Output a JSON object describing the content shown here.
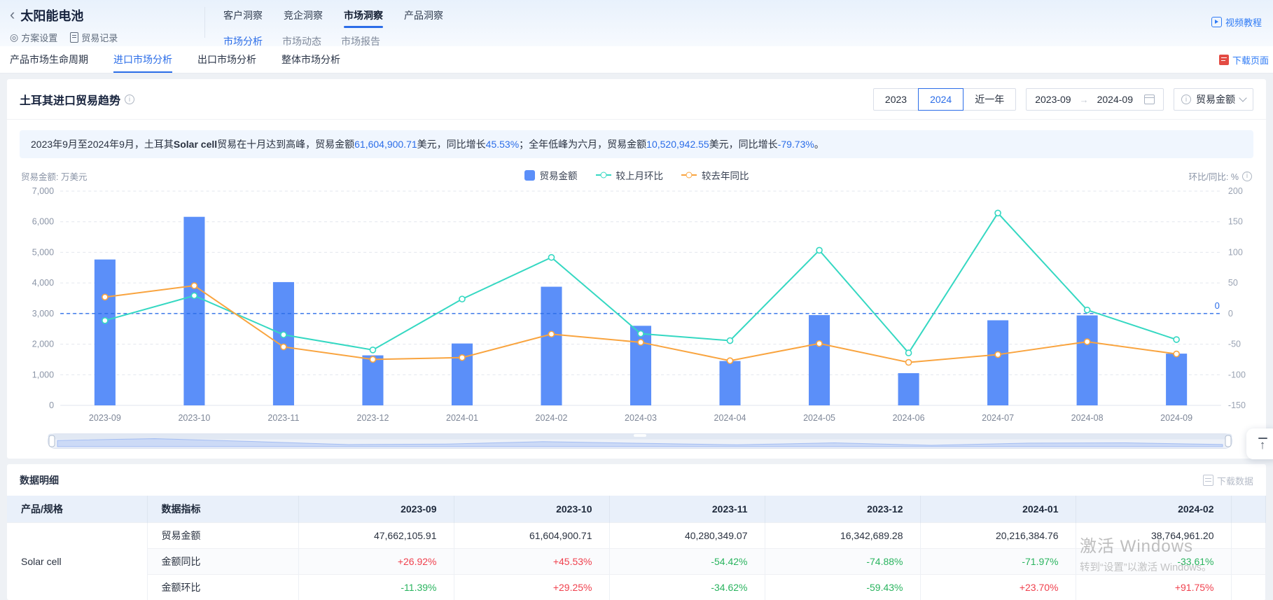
{
  "header": {
    "back": "‹",
    "title": "太阳能电池",
    "actions": [
      {
        "label": "方案设置",
        "icon": "target-icon"
      },
      {
        "label": "贸易记录",
        "icon": "document-icon"
      }
    ],
    "top_tabs": [
      {
        "label": "客户洞察",
        "active": false
      },
      {
        "label": "竞企洞察",
        "active": false
      },
      {
        "label": "市场洞察",
        "active": true
      },
      {
        "label": "产品洞察",
        "active": false
      }
    ],
    "sub_tabs": [
      {
        "label": "市场分析",
        "active": true
      },
      {
        "label": "市场动态",
        "active": false
      },
      {
        "label": "市场报告",
        "active": false
      }
    ],
    "video_link": "视频教程"
  },
  "section_nav": {
    "tabs": [
      {
        "label": "产品市场生命周期",
        "active": false
      },
      {
        "label": "进口市场分析",
        "active": true
      },
      {
        "label": "出口市场分析",
        "active": false
      },
      {
        "label": "整体市场分析",
        "active": false
      }
    ],
    "download_page": "下载页面"
  },
  "chart_panel": {
    "title": "土耳其进口贸易趋势",
    "year_buttons": [
      "2023",
      "2024",
      "近一年"
    ],
    "selected_year": "2024",
    "date_range": {
      "start": "2023-09",
      "end": "2024-09"
    },
    "metric_select": "贸易金额",
    "unit_label": "贸易金额: 万美元",
    "right_axis_label": "环比/同比: %",
    "summary_segments": [
      {
        "text": "2023年9月至2024年9月，土耳其",
        "style": "plain"
      },
      {
        "text": "Solar cell",
        "style": "bold"
      },
      {
        "text": "贸易在十月达到高峰，贸易金额",
        "style": "plain"
      },
      {
        "text": "61,604,900.71",
        "style": "blue"
      },
      {
        "text": "美元，同比增长",
        "style": "plain"
      },
      {
        "text": "45.53%",
        "style": "blue"
      },
      {
        "text": "；全年低峰为六月，贸易金额",
        "style": "plain"
      },
      {
        "text": "10,520,942.55",
        "style": "blue"
      },
      {
        "text": "美元，同比增长",
        "style": "plain"
      },
      {
        "text": "-79.73%",
        "style": "blue"
      },
      {
        "text": "。",
        "style": "plain"
      }
    ]
  },
  "chart_data": {
    "type": "bar",
    "title": "土耳其进口贸易趋势",
    "categories": [
      "2023-09",
      "2023-10",
      "2023-11",
      "2023-12",
      "2024-01",
      "2024-02",
      "2024-03",
      "2024-04",
      "2024-05",
      "2024-06",
      "2024-07",
      "2024-08",
      "2024-09"
    ],
    "series": [
      {
        "name": "贸易金额",
        "type": "bar",
        "axis": "left",
        "unit": "万美元",
        "color": "#5b8ff9",
        "values": [
          4766.21,
          6160.49,
          4028.03,
          1634.27,
          2021.64,
          3876.5,
          2600,
          1450,
          2950,
          1052.09,
          2780,
          2940,
          1690
        ]
      },
      {
        "name": "较上月环比",
        "type": "line",
        "axis": "right",
        "unit": "%",
        "color": "#35d8c2",
        "values": [
          -11.39,
          29.25,
          -34.62,
          -59.43,
          23.7,
          91.75,
          -32.9,
          -44.2,
          103.4,
          -64.3,
          164.2,
          5.8,
          -42.5
        ]
      },
      {
        "name": "较去年同比",
        "type": "line",
        "axis": "right",
        "unit": "%",
        "color": "#f9a43f",
        "values": [
          26.92,
          45.53,
          -54.42,
          -74.88,
          -71.97,
          -33.61,
          -47,
          -77,
          -49,
          -79.73,
          -67,
          -46,
          -66
        ]
      }
    ],
    "left_axis": {
      "min": 0,
      "max": 7000,
      "ticks": [
        0,
        1000,
        2000,
        3000,
        4000,
        5000,
        6000,
        7000
      ]
    },
    "right_axis": {
      "min": -150,
      "max": 200,
      "ticks": [
        -150,
        -100,
        -50,
        0,
        50,
        100,
        150,
        200
      ]
    },
    "zero_line": {
      "axis": "right",
      "value": 0,
      "label": "0",
      "color": "#2b6de8"
    },
    "legend_position": "top-center",
    "grid": true
  },
  "table_panel": {
    "title": "数据明细",
    "download_label": "下载数据",
    "columns": [
      "产品/规格",
      "数据指标",
      "2023-09",
      "2023-10",
      "2023-11",
      "2023-12",
      "2024-01",
      "2024-02",
      ""
    ],
    "product": "Solar cell",
    "rows": [
      {
        "indicator": "贸易金额",
        "type": "amount",
        "values": [
          "47,662,105.91",
          "61,604,900.71",
          "40,280,349.07",
          "16,342,689.28",
          "20,216,384.76",
          "38,764,961.20"
        ]
      },
      {
        "indicator": "金额同比",
        "type": "percent",
        "values": [
          "+26.92%",
          "+45.53%",
          "-54.42%",
          "-74.88%",
          "-71.97%",
          "-33.61%"
        ]
      },
      {
        "indicator": "金额环比",
        "type": "percent",
        "values": [
          "-11.39%",
          "+29.25%",
          "-34.62%",
          "-59.43%",
          "+23.70%",
          "+91.75%"
        ]
      }
    ]
  },
  "colors": {
    "accent_blue": "#2b6de8",
    "bar_blue": "#5b8ff9",
    "line_teal": "#35d8c2",
    "line_orange": "#f9a43f",
    "positive_red": "#f0414e",
    "negative_green": "#2ab45f"
  },
  "watermark": {
    "line1": "激活 Windows",
    "line2": "转到“设置”以激活 Windows。"
  }
}
